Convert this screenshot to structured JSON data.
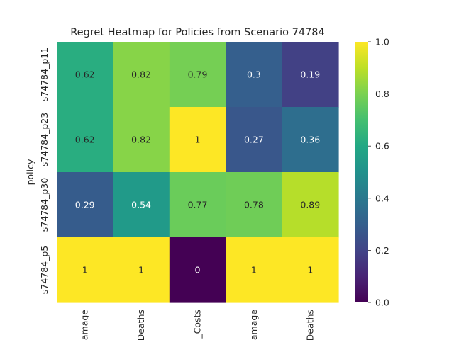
{
  "chart_data": {
    "type": "heatmap",
    "title": "Regret Heatmap for Policies from Scenario 74784",
    "xlabel": "",
    "ylabel": "policy",
    "rows": [
      "s74784_p11",
      "s74784_p23",
      "s74784_p30",
      "s74784_p5"
    ],
    "columns": [
      "amage",
      "Deaths",
      "_Costs",
      "amage",
      "Deaths"
    ],
    "values": [
      [
        0.62,
        0.82,
        0.79,
        0.3,
        0.19
      ],
      [
        0.62,
        0.82,
        1,
        0.27,
        0.36
      ],
      [
        0.29,
        0.54,
        0.77,
        0.78,
        0.89
      ],
      [
        1,
        1,
        0,
        1,
        1
      ]
    ],
    "value_labels": [
      [
        "0.62",
        "0.82",
        "0.79",
        "0.3",
        "0.19"
      ],
      [
        "0.62",
        "0.82",
        "1",
        "0.27",
        "0.36"
      ],
      [
        "0.29",
        "0.54",
        "0.77",
        "0.78",
        "0.89"
      ],
      [
        "1",
        "1",
        "0",
        "1",
        "1"
      ]
    ],
    "colormap": "viridis",
    "vmin": 0,
    "vmax": 1,
    "colorbar_ticks": [
      "0.0",
      "0.2",
      "0.4",
      "0.6",
      "0.8",
      "1.0"
    ]
  }
}
